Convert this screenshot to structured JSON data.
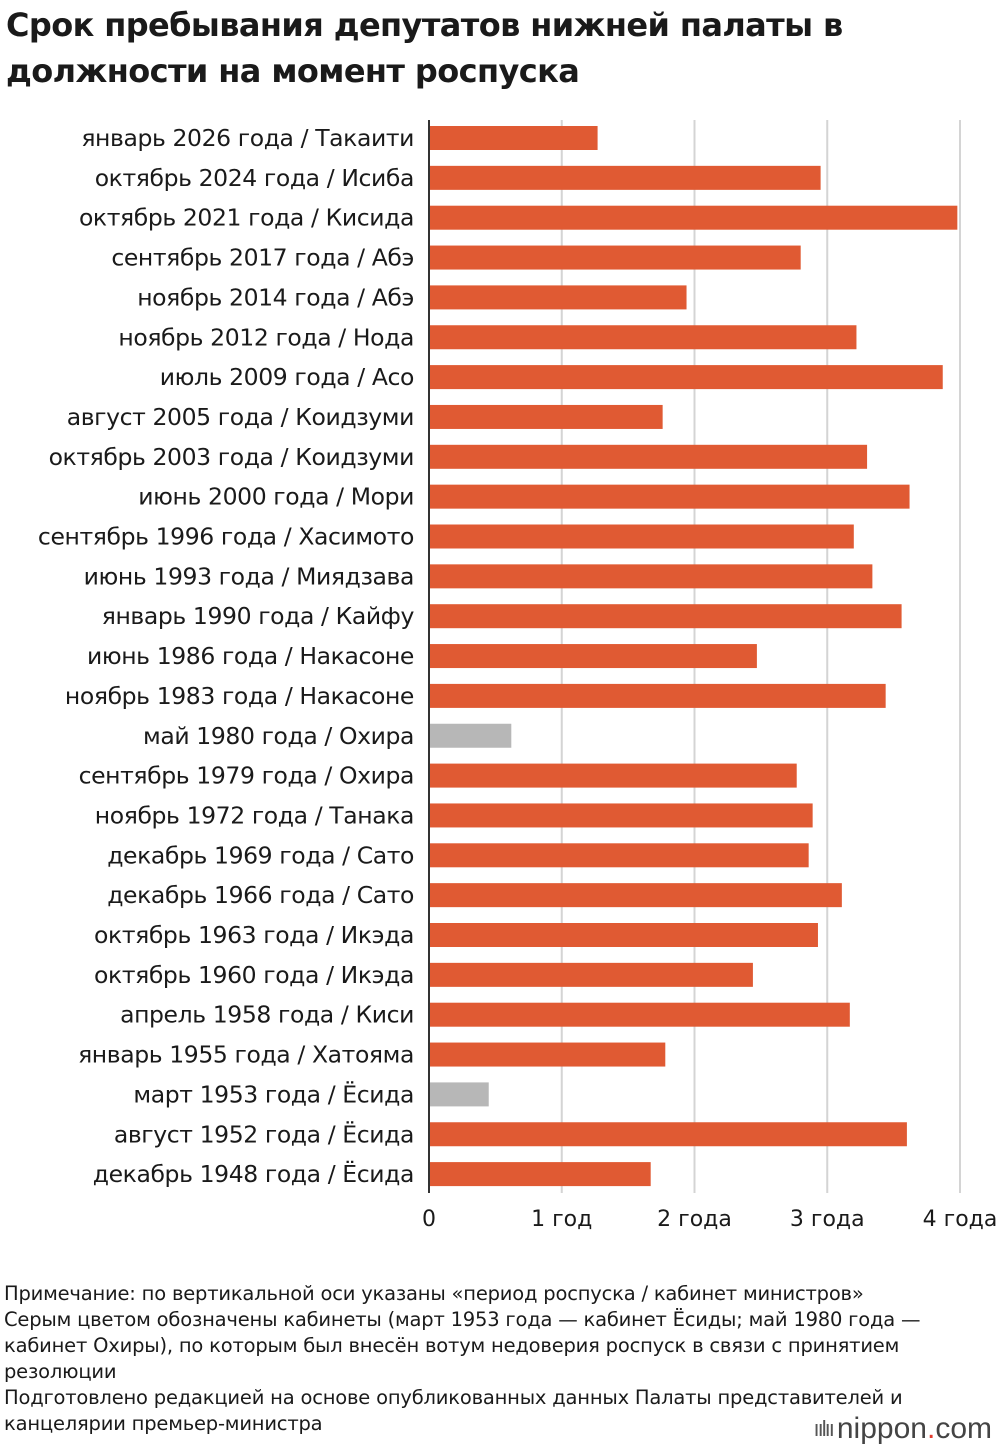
{
  "title": "Срок пребывания депутатов нижней палаты в должности на момент роспуска",
  "colors": {
    "bar": "#e05a33",
    "bar_no_confidence": "#b7b7b7",
    "grid": "#d4d4d4",
    "text": "#1a1a1a"
  },
  "chart_data": {
    "type": "bar",
    "orientation": "horizontal",
    "title": "Срок пребывания депутатов нижней палаты в должности на момент роспуска",
    "xlabel": "",
    "ylabel": "",
    "xlim": [
      0,
      4
    ],
    "x_ticks": [
      0,
      1,
      2,
      3,
      4
    ],
    "x_tick_labels": [
      "0",
      "1 год",
      "2 года",
      "3 года",
      "4 года"
    ],
    "grid": true,
    "categories": [
      "январь 2026 года / Такаити",
      "октябрь 2024 года / Исиба",
      "октябрь 2021 года / Кисида",
      "сентябрь 2017 года / Абэ",
      "ноябрь 2014 года / Абэ",
      "ноябрь 2012 года / Нода",
      "июль 2009 года / Асо",
      "август 2005 года / Коидзуми",
      "октябрь 2003 года / Коидзуми",
      "июнь 2000 года / Мори",
      "сентябрь 1996 года / Хасимото",
      "июнь 1993 года / Миядзава",
      "январь 1990 года / Кайфу",
      "июнь 1986 года / Накасоне",
      "ноябрь 1983 года / Накасоне",
      "май 1980 года / Охира",
      "сентябрь 1979 года / Охира",
      "ноябрь 1972 года / Танака",
      "декабрь 1969 года / Сато",
      "декабрь 1966 года / Сато",
      "октябрь 1963 года / Икэда",
      "октябрь 1960 года / Икэда",
      "апрель 1958 года / Киси",
      "январь 1955 года / Хатояма",
      "март 1953 года / Ёсида",
      "август 1952 года / Ёсида",
      "декабрь 1948 года / Ёсида"
    ],
    "values": [
      1.27,
      2.95,
      3.98,
      2.8,
      1.94,
      3.22,
      3.87,
      1.76,
      3.3,
      3.62,
      3.2,
      3.34,
      3.56,
      2.47,
      3.44,
      0.62,
      2.77,
      2.89,
      2.86,
      3.11,
      2.93,
      2.44,
      3.17,
      1.78,
      0.45,
      3.6,
      1.67
    ],
    "highlight_gray": [
      "май 1980 года / Охира",
      "март 1953 года / Ёсида"
    ]
  },
  "notes": [
    "Примечание: по вертикальной оси указаны «период роспуска / кабинет министров»",
    "Серым цветом обозначены кабинеты (март 1953 года — кабинет Ёсиды; май 1980 года — кабинет Охиры), по которым был внесён вотум недоверия роспуск в связи с принятием резолюции",
    "Подготовлено редакцией на основе опубликованных данных Палаты представителей и канцелярии премьер-министра"
  ],
  "logo": {
    "text": "nippon",
    "dot": ".",
    "suffix": "com"
  }
}
